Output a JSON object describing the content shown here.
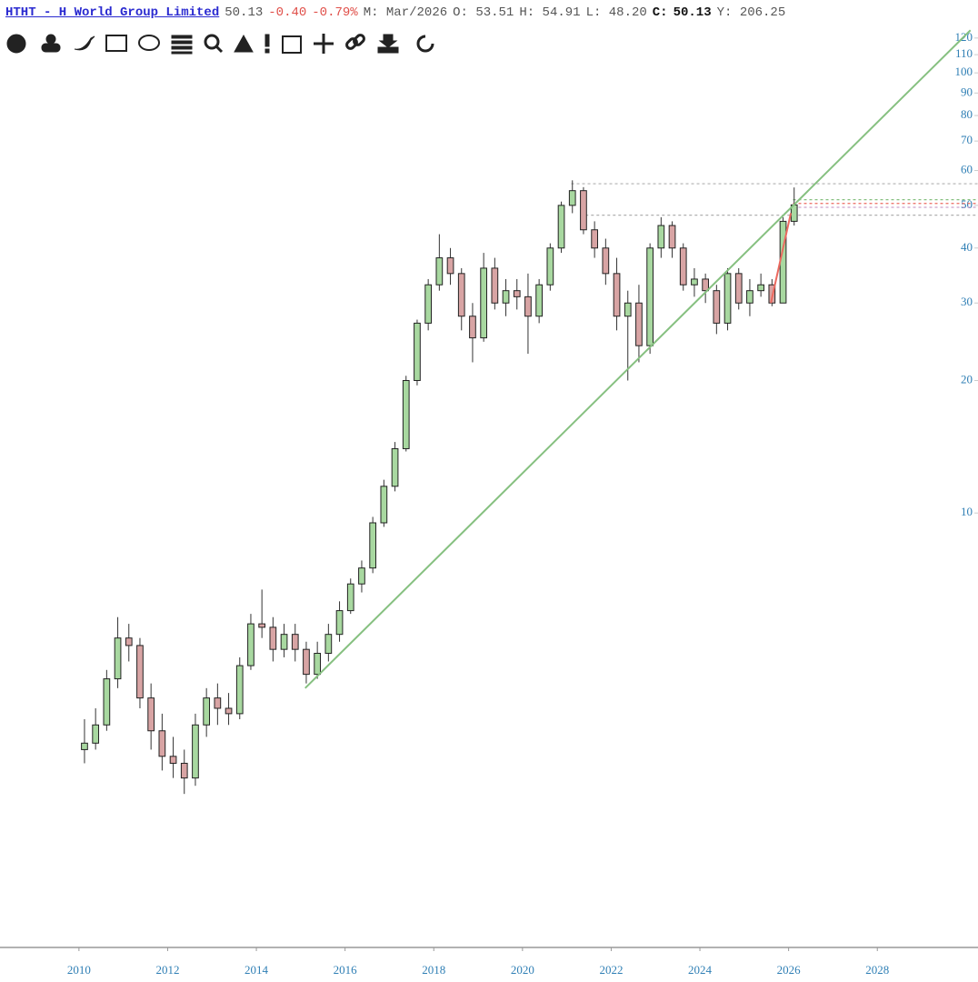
{
  "header": {
    "symbol": "HTHT - H World Group Limited",
    "last": "50.13",
    "change": "-0.40",
    "change_pct": "-0.79%",
    "period": "M: Mar/2026",
    "open": "O: 53.51",
    "high": "H: 54.91",
    "low": "L: 48.20",
    "close_label": "C:",
    "close": "50.13",
    "y": "Y: 206.25"
  },
  "chart_data": {
    "type": "candlestick",
    "log_scale": true,
    "up_color": "#a8d8a0",
    "down_color": "#d8a4a4",
    "x": [
      2010.125,
      2010.375,
      2010.625,
      2010.875,
      2011.125,
      2011.375,
      2011.625,
      2011.875,
      2012.125,
      2012.375,
      2012.625,
      2012.875,
      2013.125,
      2013.375,
      2013.625,
      2013.875,
      2014.125,
      2014.375,
      2014.625,
      2014.875,
      2015.125,
      2015.375,
      2015.625,
      2015.875,
      2016.125,
      2016.375,
      2016.625,
      2016.875,
      2017.125,
      2017.375,
      2017.625,
      2017.875,
      2018.125,
      2018.375,
      2018.625,
      2018.875,
      2019.125,
      2019.375,
      2019.625,
      2019.875,
      2020.125,
      2020.375,
      2020.625,
      2020.875,
      2021.125,
      2021.375,
      2021.625,
      2021.875,
      2022.125,
      2022.375,
      2022.625,
      2022.875,
      2023.125,
      2023.375,
      2023.625,
      2023.875,
      2024.125,
      2024.375,
      2024.625,
      2024.875,
      2025.125,
      2025.375,
      2025.625,
      2025.875,
      2026.125
    ],
    "candles": [
      [
        2.9,
        3.4,
        2.7,
        3.0
      ],
      [
        3.0,
        3.6,
        2.9,
        3.3
      ],
      [
        3.3,
        4.4,
        3.2,
        4.2
      ],
      [
        4.2,
        5.8,
        4.0,
        5.2
      ],
      [
        5.2,
        5.6,
        4.6,
        5.0
      ],
      [
        5.0,
        5.2,
        3.6,
        3.8
      ],
      [
        3.8,
        4.1,
        2.9,
        3.2
      ],
      [
        3.2,
        3.5,
        2.6,
        2.8
      ],
      [
        2.8,
        3.1,
        2.5,
        2.7
      ],
      [
        2.7,
        2.9,
        2.3,
        2.5
      ],
      [
        2.5,
        3.5,
        2.4,
        3.3
      ],
      [
        3.3,
        4.0,
        3.1,
        3.8
      ],
      [
        3.8,
        4.1,
        3.3,
        3.6
      ],
      [
        3.6,
        3.9,
        3.3,
        3.5
      ],
      [
        3.5,
        4.7,
        3.4,
        4.5
      ],
      [
        4.5,
        5.9,
        4.4,
        5.6
      ],
      [
        5.6,
        6.7,
        5.2,
        5.5
      ],
      [
        5.5,
        5.8,
        4.6,
        4.9
      ],
      [
        4.9,
        5.6,
        4.7,
        5.3
      ],
      [
        5.3,
        5.6,
        4.6,
        4.9
      ],
      [
        4.9,
        5.1,
        4.1,
        4.3
      ],
      [
        4.3,
        5.1,
        4.2,
        4.8
      ],
      [
        4.8,
        5.6,
        4.6,
        5.3
      ],
      [
        5.3,
        6.3,
        5.1,
        6.0
      ],
      [
        6.0,
        7.1,
        5.9,
        6.9
      ],
      [
        6.9,
        7.8,
        6.6,
        7.5
      ],
      [
        7.5,
        9.8,
        7.3,
        9.5
      ],
      [
        9.5,
        11.9,
        9.3,
        11.5
      ],
      [
        11.5,
        14.5,
        11.2,
        14
      ],
      [
        14,
        20.5,
        13.8,
        20
      ],
      [
        20,
        27.5,
        19.5,
        27
      ],
      [
        27,
        34,
        26,
        33
      ],
      [
        33,
        43,
        32,
        38
      ],
      [
        38,
        40,
        33,
        35
      ],
      [
        35,
        36,
        26,
        28
      ],
      [
        28,
        30,
        22,
        25
      ],
      [
        25,
        39,
        24.5,
        36
      ],
      [
        36,
        38,
        29,
        30
      ],
      [
        30,
        34,
        28,
        32
      ],
      [
        32,
        34,
        29,
        31
      ],
      [
        31,
        35,
        23,
        28
      ],
      [
        28,
        34,
        27,
        33
      ],
      [
        33,
        41,
        32,
        40
      ],
      [
        40,
        51,
        39,
        50
      ],
      [
        50,
        57,
        48,
        54
      ],
      [
        54,
        55,
        43,
        44
      ],
      [
        44,
        46,
        38,
        40
      ],
      [
        40,
        42,
        33,
        35
      ],
      [
        35,
        38,
        26,
        28
      ],
      [
        28,
        32,
        20,
        30
      ],
      [
        30,
        33,
        22,
        24
      ],
      [
        24,
        41,
        23,
        40
      ],
      [
        40,
        47,
        38,
        45
      ],
      [
        45,
        46,
        38,
        40
      ],
      [
        40,
        41,
        32,
        33
      ],
      [
        33,
        36,
        31,
        34
      ],
      [
        34,
        35,
        30,
        32
      ],
      [
        32,
        33,
        25.5,
        27
      ],
      [
        27,
        36,
        26,
        35
      ],
      [
        35,
        36,
        29,
        30
      ],
      [
        30,
        34,
        28,
        32
      ],
      [
        32,
        35,
        31,
        33
      ],
      [
        33,
        34,
        29.5,
        30
      ],
      [
        30,
        47,
        30,
        46
      ],
      [
        46,
        54.91,
        45,
        50.13
      ]
    ],
    "trendlines": [
      {
        "x": [
          2015.1,
          2030.1
        ],
        "y": [
          4.0,
          125
        ],
        "color": "#86c080"
      },
      {
        "x": [
          2025.6,
          2026.05
        ],
        "y": [
          30,
          48
        ],
        "color": "#ec6a60"
      }
    ],
    "levels": [
      {
        "y": 56,
        "x0": 2021.1,
        "color": "#b0b0b0"
      },
      {
        "y": 47.5,
        "x0": 2021.3,
        "color": "#b0b0b0"
      },
      {
        "y": 51.5,
        "x0": 2026.1,
        "color": "#86c080"
      },
      {
        "y": 50.5,
        "x0": 2026.1,
        "color": "#ec6a60"
      },
      {
        "y": 49.5,
        "x0": 2026.1,
        "color": "#c9a0c9"
      }
    ],
    "xlim": [
      2008.22,
      2030.27
    ],
    "xticks": [
      2010,
      2012,
      2014,
      2016,
      2018,
      2020,
      2022,
      2024,
      2026,
      2028
    ],
    "ylim": [
      1.05,
      130
    ],
    "yticks": [
      10,
      20,
      30,
      40,
      50,
      60,
      70,
      80,
      90,
      100,
      110,
      120
    ]
  }
}
